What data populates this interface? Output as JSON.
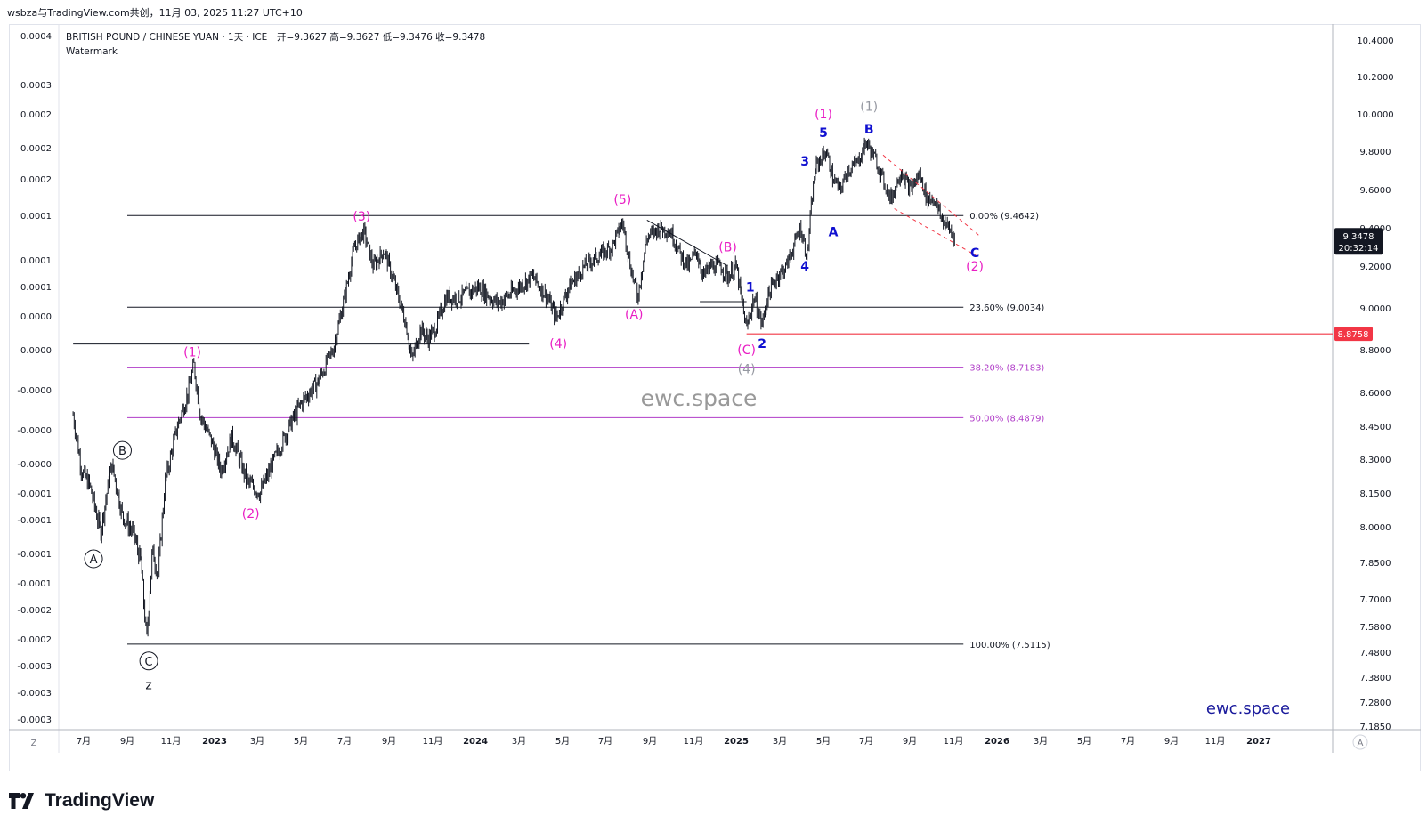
{
  "header": {
    "publish_line": "wsbza与TradingView.com共创，11月 03, 2025 11:27 UTC+10",
    "symbol_line": "BRITISH POUND / CHINESE YUAN · 1天 · ICE",
    "ohlc": "开=9.3627  高=9.3627  低=9.3476  收=9.3478",
    "watermark_label": "Watermark"
  },
  "footer": {
    "brand": "TradingView",
    "timezone_button": "Z",
    "auto_button": "A"
  },
  "colors": {
    "candles": "#131722",
    "magenta": "#e91ec4",
    "blue": "#1010d0",
    "grey": "#9598a1",
    "red_line": "#f23645",
    "fib_magenta": "#b03cc8",
    "watermark_text": "#999999",
    "brand_blue": "#1a1a9c"
  },
  "chart_data": {
    "type": "candlestick",
    "title": "BRITISH POUND / CHINESE YUAN · 1天 · ICE",
    "series_name": "GBPCNH daily",
    "x_range": [
      "2022-06",
      "2027-01"
    ],
    "ylim": [
      7.185,
      10.45
    ],
    "right_axis_ticks": [
      10.4,
      10.2,
      10.0,
      9.8,
      9.6,
      9.4,
      9.2,
      9.0,
      8.8,
      8.6,
      8.45,
      8.3,
      8.15,
      8.0,
      7.85,
      7.7,
      7.58,
      7.48,
      7.38,
      7.28,
      7.185
    ],
    "right_axis_labels": [
      "10.4000",
      "10.2000",
      "10.0000",
      "9.8000",
      "9.6000",
      "9.4000",
      "9.2000",
      "9.0000",
      "8.8000",
      "8.6000",
      "8.4500",
      "8.3000",
      "8.1500",
      "8.0000",
      "7.8500",
      "7.7000",
      "7.5800",
      "7.4800",
      "7.3800",
      "7.2800",
      "7.1850"
    ],
    "left_axis_labels": [
      "0.0004",
      "0.0003",
      "0.0002",
      "0.0002",
      "0.0002",
      "0.0001",
      "0.0001",
      "0.0001",
      "0.0000",
      "0.0000",
      "-0.0000",
      "-0.0000",
      "-0.0000",
      "-0.0001",
      "-0.0001",
      "-0.0001",
      "-0.0001",
      "-0.0002",
      "-0.0002",
      "-0.0003",
      "-0.0003",
      "-0.0003"
    ],
    "x_axis_labels": [
      {
        "date": "2022-07",
        "label": "7月"
      },
      {
        "date": "2022-09",
        "label": "9月"
      },
      {
        "date": "2022-11",
        "label": "11月"
      },
      {
        "date": "2023-01",
        "label": "2023"
      },
      {
        "date": "2023-03",
        "label": "3月"
      },
      {
        "date": "2023-05",
        "label": "5月"
      },
      {
        "date": "2023-07",
        "label": "7月"
      },
      {
        "date": "2023-09",
        "label": "9月"
      },
      {
        "date": "2023-11",
        "label": "11月"
      },
      {
        "date": "2024-01",
        "label": "2024"
      },
      {
        "date": "2024-03",
        "label": "3月"
      },
      {
        "date": "2024-05",
        "label": "5月"
      },
      {
        "date": "2024-07",
        "label": "7月"
      },
      {
        "date": "2024-09",
        "label": "9月"
      },
      {
        "date": "2024-11",
        "label": "11月"
      },
      {
        "date": "2025-01",
        "label": "2025"
      },
      {
        "date": "2025-03",
        "label": "3月"
      },
      {
        "date": "2025-05",
        "label": "5月"
      },
      {
        "date": "2025-07",
        "label": "7月"
      },
      {
        "date": "2025-09",
        "label": "9月"
      },
      {
        "date": "2025-11",
        "label": "11月"
      },
      {
        "date": "2026-01",
        "label": "2026"
      },
      {
        "date": "2026-03",
        "label": "3月"
      },
      {
        "date": "2026-05",
        "label": "5月"
      },
      {
        "date": "2026-07",
        "label": "7月"
      },
      {
        "date": "2026-09",
        "label": "9月"
      },
      {
        "date": "2026-11",
        "label": "11月"
      },
      {
        "date": "2027-01",
        "label": "2027"
      }
    ],
    "price_path": [
      [
        "2022-06-16",
        8.5
      ],
      [
        "2022-06-28",
        8.25
      ],
      [
        "2022-07-10",
        8.18
      ],
      [
        "2022-07-25",
        7.98
      ],
      [
        "2022-08-10",
        8.28
      ],
      [
        "2022-08-25",
        8.05
      ],
      [
        "2022-09-10",
        7.97
      ],
      [
        "2022-09-20",
        7.85
      ],
      [
        "2022-09-28",
        7.52
      ],
      [
        "2022-10-06",
        7.9
      ],
      [
        "2022-10-14",
        7.8
      ],
      [
        "2022-10-24",
        8.2
      ],
      [
        "2022-11-10",
        8.45
      ],
      [
        "2022-11-25",
        8.6
      ],
      [
        "2022-12-03",
        8.73
      ],
      [
        "2022-12-12",
        8.5
      ],
      [
        "2022-12-28",
        8.38
      ],
      [
        "2023-01-10",
        8.25
      ],
      [
        "2023-01-25",
        8.4
      ],
      [
        "2023-02-15",
        8.2
      ],
      [
        "2023-03-05",
        8.15
      ],
      [
        "2023-03-25",
        8.3
      ],
      [
        "2023-04-15",
        8.45
      ],
      [
        "2023-05-01",
        8.55
      ],
      [
        "2023-05-25",
        8.65
      ],
      [
        "2023-06-15",
        8.8
      ],
      [
        "2023-07-01",
        9.05
      ],
      [
        "2023-07-15",
        9.3
      ],
      [
        "2023-07-28",
        9.38
      ],
      [
        "2023-08-10",
        9.2
      ],
      [
        "2023-08-25",
        9.28
      ],
      [
        "2023-09-10",
        9.1
      ],
      [
        "2023-09-25",
        8.92
      ],
      [
        "2023-10-03",
        8.75
      ],
      [
        "2023-10-15",
        8.9
      ],
      [
        "2023-10-25",
        8.85
      ],
      [
        "2023-11-05",
        8.9
      ],
      [
        "2023-11-20",
        9.05
      ],
      [
        "2023-12-10",
        9.05
      ],
      [
        "2024-01-05",
        9.1
      ],
      [
        "2024-02-01",
        9.02
      ],
      [
        "2024-03-01",
        9.1
      ],
      [
        "2024-03-20",
        9.15
      ],
      [
        "2024-04-10",
        9.05
      ],
      [
        "2024-04-22",
        8.95
      ],
      [
        "2024-05-10",
        9.1
      ],
      [
        "2024-06-01",
        9.2
      ],
      [
        "2024-06-20",
        9.25
      ],
      [
        "2024-07-10",
        9.3
      ],
      [
        "2024-07-25",
        9.43
      ],
      [
        "2024-08-05",
        9.2
      ],
      [
        "2024-08-15",
        9.05
      ],
      [
        "2024-08-28",
        9.35
      ],
      [
        "2024-09-15",
        9.4
      ],
      [
        "2024-09-30",
        9.38
      ],
      [
        "2024-10-15",
        9.25
      ],
      [
        "2024-10-25",
        9.2
      ],
      [
        "2024-11-05",
        9.28
      ],
      [
        "2024-11-15",
        9.15
      ],
      [
        "2024-11-25",
        9.2
      ],
      [
        "2024-12-10",
        9.2
      ],
      [
        "2024-12-20",
        9.15
      ],
      [
        "2025-01-01",
        9.2
      ],
      [
        "2025-01-10",
        9.0
      ],
      [
        "2025-01-15",
        8.9
      ],
      [
        "2025-01-25",
        9.05
      ],
      [
        "2025-02-05",
        8.92
      ],
      [
        "2025-02-12",
        9.05
      ],
      [
        "2025-02-25",
        9.15
      ],
      [
        "2025-03-10",
        9.2
      ],
      [
        "2025-03-20",
        9.3
      ],
      [
        "2025-03-30",
        9.4
      ],
      [
        "2025-04-08",
        9.25
      ],
      [
        "2025-04-15",
        9.55
      ],
      [
        "2025-04-20",
        9.72
      ],
      [
        "2025-05-05",
        9.8
      ],
      [
        "2025-05-15",
        9.65
      ],
      [
        "2025-05-25",
        9.6
      ],
      [
        "2025-06-05",
        9.7
      ],
      [
        "2025-06-20",
        9.75
      ],
      [
        "2025-07-01",
        9.85
      ],
      [
        "2025-07-15",
        9.75
      ],
      [
        "2025-07-25",
        9.65
      ],
      [
        "2025-08-05",
        9.55
      ],
      [
        "2025-08-20",
        9.7
      ],
      [
        "2025-09-01",
        9.6
      ],
      [
        "2025-09-15",
        9.68
      ],
      [
        "2025-09-25",
        9.55
      ],
      [
        "2025-10-05",
        9.55
      ],
      [
        "2025-10-15",
        9.45
      ],
      [
        "2025-10-25",
        9.4
      ],
      [
        "2025-11-03",
        9.3478
      ]
    ],
    "last_price": {
      "value": 9.3478,
      "label": "9.3478",
      "countdown": "20:32:14"
    },
    "red_level": {
      "value": 8.8758,
      "label": "8.8758",
      "from": "2025-01-15"
    },
    "black_level": {
      "value": 8.827,
      "from": "2022-06-16",
      "to": "2024-03-15"
    },
    "fib_levels": [
      {
        "value": 9.4642,
        "label": "0.00% (9.4642)",
        "color": "#131722"
      },
      {
        "value": 9.0034,
        "label": "23.60% (9.0034)",
        "color": "#131722"
      },
      {
        "value": 8.7183,
        "label": "38.20% (8.7183)",
        "color": "#b03cc8"
      },
      {
        "value": 8.4879,
        "label": "50.00% (8.4879)",
        "color": "#b03cc8"
      },
      {
        "value": 7.5115,
        "label": "100.00% (7.5115)",
        "color": "#131722"
      }
    ],
    "fib_x_range": [
      "2022-09-01",
      "2025-11-15"
    ],
    "trendlines": [
      {
        "from": [
          "2024-08-28",
          9.44
        ],
        "to": [
          "2024-12-20",
          9.2
        ],
        "style": "solid"
      },
      {
        "from": [
          "2024-11-10",
          9.03
        ],
        "to": [
          "2025-01-15",
          9.03
        ],
        "style": "solid"
      },
      {
        "from": [
          "2025-07-25",
          9.78
        ],
        "to": [
          "2025-12-10",
          9.35
        ],
        "style": "dashed"
      },
      {
        "from": [
          "2025-08-10",
          9.5
        ],
        "to": [
          "2025-12-05",
          9.25
        ],
        "style": "dashed"
      }
    ],
    "annotations": [
      {
        "text": "A",
        "date": "2022-07-15",
        "price": 7.865,
        "color": "#131722",
        "circled": true
      },
      {
        "text": "B",
        "date": "2022-08-25",
        "price": 8.34,
        "color": "#131722",
        "circled": true
      },
      {
        "text": "C",
        "date": "2022-10-01",
        "price": 7.445,
        "color": "#131722",
        "circled": true
      },
      {
        "text": "z",
        "date": "2022-10-01",
        "price": 7.35,
        "color": "#131722"
      },
      {
        "text": "(1)",
        "date": "2022-12-01",
        "price": 8.79,
        "color": "#e91ec4"
      },
      {
        "text": "(2)",
        "date": "2023-02-20",
        "price": 8.06,
        "color": "#e91ec4"
      },
      {
        "text": "(3)",
        "date": "2023-07-25",
        "price": 9.46,
        "color": "#e91ec4"
      },
      {
        "text": "(4)",
        "date": "2024-04-25",
        "price": 8.83,
        "color": "#e91ec4"
      },
      {
        "text": "(5)",
        "date": "2024-07-25",
        "price": 9.55,
        "color": "#e91ec4"
      },
      {
        "text": "(A)",
        "date": "2024-08-10",
        "price": 8.97,
        "color": "#e91ec4"
      },
      {
        "text": "(B)",
        "date": "2024-12-20",
        "price": 9.3,
        "color": "#e91ec4"
      },
      {
        "text": "(C)",
        "date": "2025-01-15",
        "price": 8.8,
        "color": "#e91ec4"
      },
      {
        "text": "(4)",
        "date": "2025-01-15",
        "price": 8.71,
        "color": "#9598a1"
      },
      {
        "text": "1",
        "date": "2025-01-20",
        "price": 9.1,
        "color": "#1010d0"
      },
      {
        "text": "2",
        "date": "2025-02-05",
        "price": 8.83,
        "color": "#1010d0"
      },
      {
        "text": "3",
        "date": "2025-04-05",
        "price": 9.75,
        "color": "#1010d0"
      },
      {
        "text": "4",
        "date": "2025-04-05",
        "price": 9.2,
        "color": "#1010d0"
      },
      {
        "text": "5",
        "date": "2025-05-01",
        "price": 9.9,
        "color": "#1010d0"
      },
      {
        "text": "(1)",
        "date": "2025-05-01",
        "price": 10.0,
        "color": "#e91ec4"
      },
      {
        "text": "A",
        "date": "2025-05-15",
        "price": 9.38,
        "color": "#1010d0"
      },
      {
        "text": "B",
        "date": "2025-07-05",
        "price": 9.92,
        "color": "#1010d0"
      },
      {
        "text": "(1)",
        "date": "2025-07-05",
        "price": 10.04,
        "color": "#9598a1"
      },
      {
        "text": "C",
        "date": "2025-12-01",
        "price": 9.27,
        "color": "#1010d0"
      },
      {
        "text": "(2)",
        "date": "2025-12-01",
        "price": 9.2,
        "color": "#e91ec4"
      }
    ],
    "watermarks": [
      {
        "text": "ewc.space",
        "position": "center",
        "color": "#999999"
      },
      {
        "text": "ewc.space",
        "position": "bottom-right",
        "color": "#1a1a9c"
      }
    ]
  }
}
